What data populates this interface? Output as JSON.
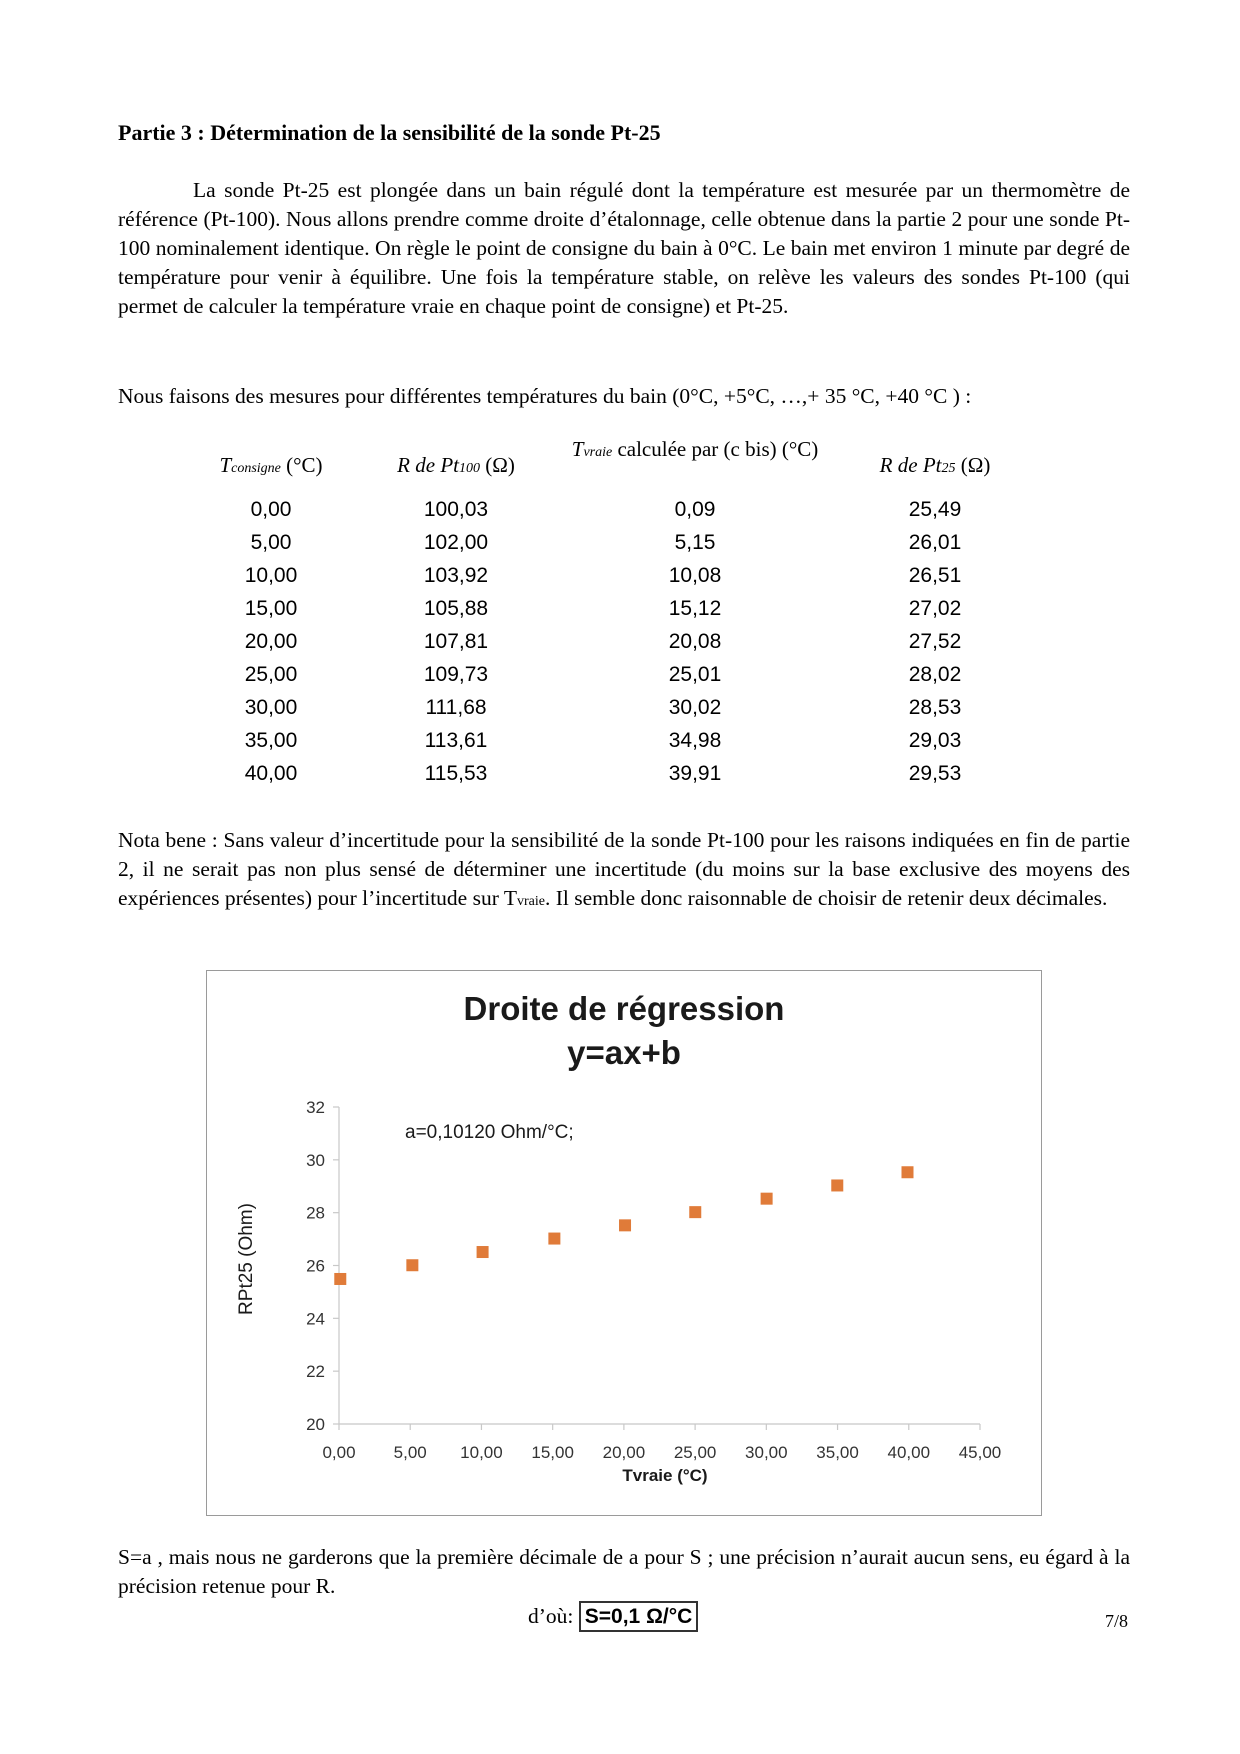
{
  "heading": "Partie 3 : Détermination de la sensibilité de la sonde Pt-25",
  "intro": "La sonde Pt-25 est plongée dans un bain régulé dont la température est mesurée par un thermomètre de référence (Pt-100). Nous allons prendre comme droite d’étalonnage, celle obtenue dans la partie 2 pour une sonde Pt-100 nominalement identique. On règle le point de consigne du bain à 0°C. Le bain met environ 1 minute par degré de température pour venir à équilibre. Une fois la température stable, on relève les valeurs des sondes Pt-100 (qui permet de calculer la température vraie en chaque point de consigne) et Pt-25.",
  "measures_line": "Nous faisons des mesures pour différentes températures du bain (0°C, +5°C, …,+ 35 °C, +40 °C ) :",
  "table": {
    "headers": [
      {
        "main": "T",
        "sub": "consigne",
        "rest": " (°C)"
      },
      {
        "main": "R de Pt",
        "sub": "100",
        "rest": " (Ω)"
      },
      {
        "main": "T",
        "sub": "vraie",
        "rest": " calculée par (c bis) (°C)"
      },
      {
        "main": "R de Pt",
        "sub": "25",
        "rest": " (Ω)"
      }
    ],
    "rows": [
      [
        "0,00",
        "100,03",
        "0,09",
        "25,49"
      ],
      [
        "5,00",
        "102,00",
        "5,15",
        "26,01"
      ],
      [
        "10,00",
        "103,92",
        "10,08",
        "26,51"
      ],
      [
        "15,00",
        "105,88",
        "15,12",
        "27,02"
      ],
      [
        "20,00",
        "107,81",
        "20,08",
        "27,52"
      ],
      [
        "25,00",
        "109,73",
        "25,01",
        "28,02"
      ],
      [
        "30,00",
        "111,68",
        "30,02",
        "28,53"
      ],
      [
        "35,00",
        "113,61",
        "34,98",
        "29,03"
      ],
      [
        "40,00",
        "115,53",
        "39,91",
        "29,53"
      ]
    ]
  },
  "nota": {
    "before": "Nota bene : Sans valeur d’incertitude pour la sensibilité de la sonde Pt-100 pour les raisons indiquées en fin de partie 2, il ne serait pas non plus sensé de déterminer une incertitude (du moins sur la base exclusive des moyens des expériences présentes) pour l’incertitude sur T",
    "sub": "vraie",
    "after": ". Il semble donc raisonnable de choisir de retenir deux décimales."
  },
  "chart_data": {
    "type": "scatter",
    "title": "Droite de régression",
    "subtitle": "y=ax+b",
    "annotation": "a=0,10120 Ohm/°C;",
    "xlabel": "Tvraie (°C)",
    "ylabel": "RPt25  (Ohm)",
    "xlim": [
      0,
      45
    ],
    "ylim": [
      20,
      32
    ],
    "xticks": [
      "0,00",
      "5,00",
      "10,00",
      "15,00",
      "20,00",
      "25,00",
      "30,00",
      "35,00",
      "40,00",
      "45,00"
    ],
    "yticks": [
      "20",
      "22",
      "24",
      "26",
      "28",
      "30",
      "32"
    ],
    "x": [
      0.09,
      5.15,
      10.08,
      15.12,
      20.08,
      25.01,
      30.02,
      34.98,
      39.91
    ],
    "y": [
      25.49,
      26.01,
      26.51,
      27.02,
      27.52,
      28.02,
      28.53,
      29.03,
      29.53
    ],
    "marker_color": "#E07B39",
    "grid": false
  },
  "conclusion": "S=a , mais nous ne garderons que la première décimale de a pour S ; une précision n’aurait aucun sens, eu égard à la précision retenue pour R.",
  "result_prefix": "d’où:",
  "result_value": "S=0,1 Ω/°C",
  "page_number": "7/8"
}
